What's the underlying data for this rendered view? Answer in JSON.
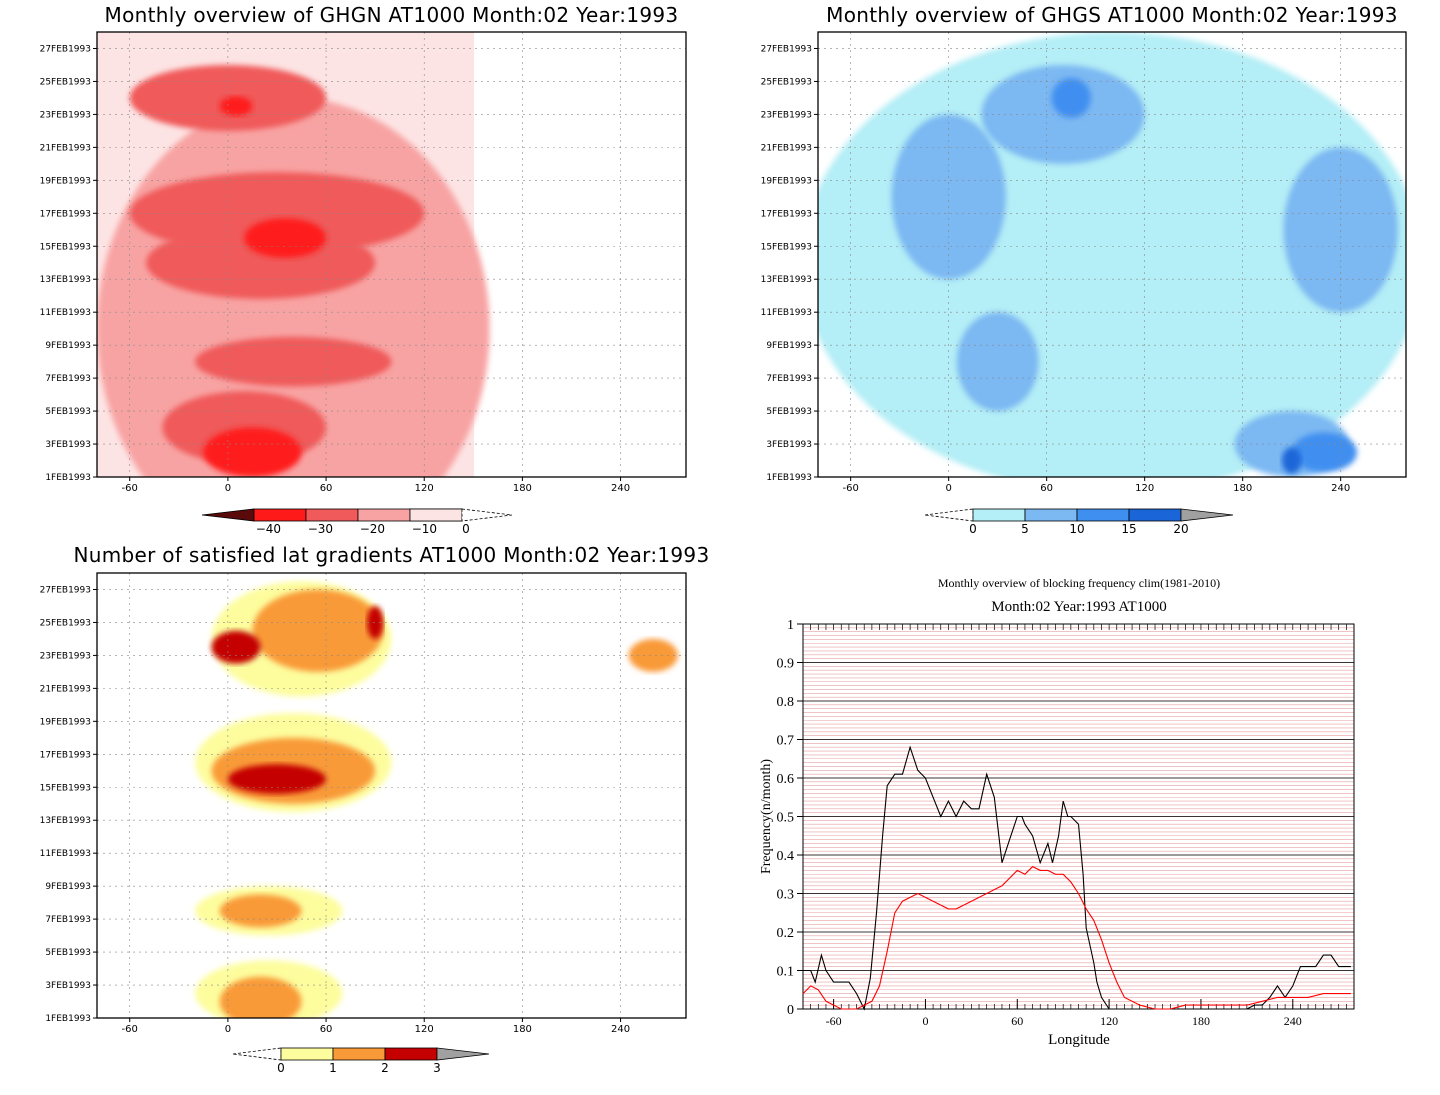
{
  "chart_data": [
    {
      "type": "heatmap",
      "title": "Monthly overview of GHGN AT1000 Month:02 Year:1993",
      "y_ticks": [
        "1FEB1993",
        "3FEB1993",
        "5FEB1993",
        "7FEB1993",
        "9FEB1993",
        "11FEB1993",
        "13FEB1993",
        "15FEB1993",
        "17FEB1993",
        "19FEB1993",
        "21FEB1993",
        "23FEB1993",
        "25FEB1993",
        "27FEB1993"
      ],
      "x_ticks": [
        "-60",
        "0",
        "60",
        "120",
        "180",
        "240"
      ],
      "x_tick_values": [
        -60,
        0,
        60,
        120,
        180,
        240
      ],
      "xlim": [
        -80,
        280
      ],
      "ylim": [
        1,
        28
      ],
      "colorbar": {
        "labels": [
          "-40",
          "-30",
          "-20",
          "-10",
          "0"
        ],
        "colors": [
          "#7a0f0f",
          "#ff1a1a",
          "#f05a5a",
          "#f8a3a3",
          "#fde4e4"
        ],
        "extend_low_color": "#5a0a0a"
      },
      "blobs": [
        {
          "level": 1,
          "cx": 40,
          "cy": 10,
          "rx": 120,
          "ry": 14
        },
        {
          "level": 2,
          "cx": 30,
          "cy": 17,
          "rx": 90,
          "ry": 2.5
        },
        {
          "level": 2,
          "cx": 20,
          "cy": 14,
          "rx": 70,
          "ry": 2.2
        },
        {
          "level": 2,
          "cx": 10,
          "cy": 4,
          "rx": 50,
          "ry": 2.2
        },
        {
          "level": 2,
          "cx": 0,
          "cy": 24,
          "rx": 60,
          "ry": 2
        },
        {
          "level": 2,
          "cx": 40,
          "cy": 8,
          "rx": 60,
          "ry": 1.5
        },
        {
          "level": 3,
          "cx": 35,
          "cy": 15.5,
          "rx": 25,
          "ry": 1.2
        },
        {
          "level": 3,
          "cx": 15,
          "cy": 2.5,
          "rx": 30,
          "ry": 1.5
        },
        {
          "level": 3,
          "cx": 5,
          "cy": 23.5,
          "rx": 10,
          "ry": 0.6
        }
      ]
    },
    {
      "type": "heatmap",
      "title": "Monthly overview of GHGS AT1000 Month:02 Year:1993",
      "y_ticks": [
        "1FEB1993",
        "3FEB1993",
        "5FEB1993",
        "7FEB1993",
        "9FEB1993",
        "11FEB1993",
        "13FEB1993",
        "15FEB1993",
        "17FEB1993",
        "19FEB1993",
        "21FEB1993",
        "23FEB1993",
        "25FEB1993",
        "27FEB1993"
      ],
      "x_ticks": [
        "-60",
        "0",
        "60",
        "120",
        "180",
        "240"
      ],
      "x_tick_values": [
        -60,
        0,
        60,
        120,
        180,
        240
      ],
      "xlim": [
        -80,
        280
      ],
      "ylim": [
        1,
        28
      ],
      "colorbar": {
        "labels": [
          "0",
          "5",
          "10",
          "15",
          "20"
        ],
        "colors": [
          "#b4eef6",
          "#7cb8f2",
          "#3f8ff0",
          "#1a66d8",
          "#a0a0a0"
        ]
      },
      "blobs": [
        {
          "level": 1,
          "cx": 100,
          "cy": 14,
          "rx": 190,
          "ry": 14
        },
        {
          "level": 2,
          "cx": 0,
          "cy": 18,
          "rx": 35,
          "ry": 5
        },
        {
          "level": 2,
          "cx": 70,
          "cy": 23,
          "rx": 50,
          "ry": 3
        },
        {
          "level": 2,
          "cx": 240,
          "cy": 16,
          "rx": 35,
          "ry": 5
        },
        {
          "level": 2,
          "cx": 210,
          "cy": 3,
          "rx": 35,
          "ry": 2
        },
        {
          "level": 2,
          "cx": 30,
          "cy": 8,
          "rx": 25,
          "ry": 3
        },
        {
          "level": 3,
          "cx": 75,
          "cy": 24,
          "rx": 12,
          "ry": 1.2
        },
        {
          "level": 3,
          "cx": 230,
          "cy": 2.5,
          "rx": 20,
          "ry": 1.2
        },
        {
          "level": 4,
          "cx": 210,
          "cy": 2,
          "rx": 6,
          "ry": 0.8
        }
      ]
    },
    {
      "type": "heatmap",
      "title": "Number of satisfied lat gradients AT1000 Month:02 Year:1993",
      "y_ticks": [
        "1FEB1993",
        "3FEB1993",
        "5FEB1993",
        "7FEB1993",
        "9FEB1993",
        "11FEB1993",
        "13FEB1993",
        "15FEB1993",
        "17FEB1993",
        "19FEB1993",
        "21FEB1993",
        "23FEB1993",
        "25FEB1993",
        "27FEB1993"
      ],
      "x_ticks": [
        "-60",
        "0",
        "60",
        "120",
        "180",
        "240"
      ],
      "x_tick_values": [
        -60,
        0,
        60,
        120,
        180,
        240
      ],
      "xlim": [
        -80,
        280
      ],
      "ylim": [
        1,
        28
      ],
      "colorbar": {
        "labels": [
          "0",
          "1",
          "2",
          "3"
        ],
        "colors": [
          "#fdfd9e",
          "#f99a38",
          "#c40000",
          "#a0a0a0"
        ]
      },
      "blobs": [
        {
          "level": 1,
          "cx": 45,
          "cy": 24,
          "rx": 55,
          "ry": 3.5
        },
        {
          "level": 1,
          "cx": 40,
          "cy": 16.5,
          "rx": 60,
          "ry": 3
        },
        {
          "level": 1,
          "cx": 25,
          "cy": 7.5,
          "rx": 45,
          "ry": 1.5
        },
        {
          "level": 1,
          "cx": 25,
          "cy": 2.5,
          "rx": 45,
          "ry": 2
        },
        {
          "level": 2,
          "cx": 55,
          "cy": 24.5,
          "rx": 40,
          "ry": 2.5
        },
        {
          "level": 2,
          "cx": 40,
          "cy": 16,
          "rx": 50,
          "ry": 2
        },
        {
          "level": 2,
          "cx": 20,
          "cy": 7.5,
          "rx": 25,
          "ry": 1
        },
        {
          "level": 2,
          "cx": 20,
          "cy": 2,
          "rx": 25,
          "ry": 1.5
        },
        {
          "level": 2,
          "cx": 260,
          "cy": 23,
          "rx": 15,
          "ry": 1
        },
        {
          "level": 3,
          "cx": 30,
          "cy": 15.5,
          "rx": 30,
          "ry": 0.9
        },
        {
          "level": 3,
          "cx": 5,
          "cy": 23.5,
          "rx": 15,
          "ry": 1
        },
        {
          "level": 3,
          "cx": 90,
          "cy": 25,
          "rx": 5,
          "ry": 1
        }
      ]
    },
    {
      "type": "line",
      "title": "Monthly overview of blocking frequency clim(1981-2010)",
      "subtitle": "Month:02 Year:1993  AT1000",
      "xlabel": "Longitude",
      "ylabel": "Frequency(n/month)",
      "xlim": [
        -80,
        280
      ],
      "ylim": [
        0,
        1
      ],
      "x_ticks": [
        "-60",
        "0",
        "60",
        "120",
        "180",
        "240"
      ],
      "x_tick_values": [
        -60,
        0,
        60,
        120,
        180,
        240
      ],
      "y_ticks": [
        "0",
        "0.1",
        "0.2",
        "0.3",
        "0.4",
        "0.5",
        "0.6",
        "0.7",
        "0.8",
        "0.9",
        "1"
      ],
      "y_tick_values": [
        0,
        0.1,
        0.2,
        0.3,
        0.4,
        0.5,
        0.6,
        0.7,
        0.8,
        0.9,
        1
      ],
      "series": [
        {
          "color": "#000000",
          "x": [
            -80,
            -75,
            -72,
            -68,
            -65,
            -60,
            -55,
            -50,
            -45,
            -40,
            -36,
            -32,
            -28,
            -25,
            -20,
            -15,
            -10,
            -5,
            0,
            5,
            10,
            15,
            20,
            25,
            30,
            35,
            40,
            45,
            50,
            55,
            60,
            63,
            65,
            70,
            75,
            80,
            83,
            87,
            90,
            93,
            95,
            100,
            103,
            105,
            110,
            112,
            115,
            120,
            125,
            130,
            135,
            140,
            150,
            160,
            170,
            180,
            190,
            200,
            210,
            215,
            220,
            225,
            230,
            235,
            240,
            245,
            250,
            255,
            260,
            265,
            270,
            278
          ],
          "y": [
            0.1,
            0.1,
            0.07,
            0.14,
            0.1,
            0.07,
            0.07,
            0.07,
            0.04,
            0.0,
            0.08,
            0.25,
            0.45,
            0.58,
            0.61,
            0.61,
            0.68,
            0.62,
            0.6,
            0.55,
            0.5,
            0.54,
            0.5,
            0.54,
            0.52,
            0.52,
            0.61,
            0.55,
            0.38,
            0.44,
            0.5,
            0.5,
            0.48,
            0.45,
            0.38,
            0.43,
            0.38,
            0.45,
            0.54,
            0.5,
            0.5,
            0.48,
            0.35,
            0.21,
            0.12,
            0.07,
            0.03,
            0.0,
            0.0,
            0.0,
            0.0,
            0.0,
            0.0,
            0.0,
            0.0,
            0.0,
            0.0,
            0.0,
            0.0,
            0.01,
            0.01,
            0.03,
            0.06,
            0.03,
            0.06,
            0.11,
            0.11,
            0.11,
            0.14,
            0.14,
            0.11,
            0.11
          ]
        },
        {
          "color": "#ff0000",
          "x": [
            -80,
            -75,
            -70,
            -65,
            -60,
            -55,
            -50,
            -45,
            -40,
            -35,
            -30,
            -25,
            -20,
            -15,
            -10,
            -5,
            0,
            5,
            10,
            15,
            20,
            25,
            30,
            35,
            40,
            45,
            50,
            55,
            60,
            65,
            70,
            75,
            80,
            85,
            90,
            95,
            100,
            105,
            110,
            115,
            120,
            125,
            130,
            140,
            150,
            160,
            170,
            180,
            190,
            200,
            210,
            220,
            230,
            240,
            250,
            260,
            270,
            278
          ],
          "y": [
            0.04,
            0.06,
            0.05,
            0.02,
            0.01,
            0.0,
            0.0,
            0.0,
            0.01,
            0.02,
            0.06,
            0.15,
            0.25,
            0.28,
            0.29,
            0.3,
            0.29,
            0.28,
            0.27,
            0.26,
            0.26,
            0.27,
            0.28,
            0.29,
            0.3,
            0.31,
            0.32,
            0.34,
            0.36,
            0.35,
            0.37,
            0.36,
            0.36,
            0.35,
            0.35,
            0.33,
            0.3,
            0.26,
            0.23,
            0.18,
            0.12,
            0.07,
            0.03,
            0.01,
            0.0,
            0.0,
            0.01,
            0.01,
            0.01,
            0.01,
            0.01,
            0.02,
            0.03,
            0.03,
            0.03,
            0.04,
            0.04,
            0.04
          ]
        }
      ]
    }
  ]
}
